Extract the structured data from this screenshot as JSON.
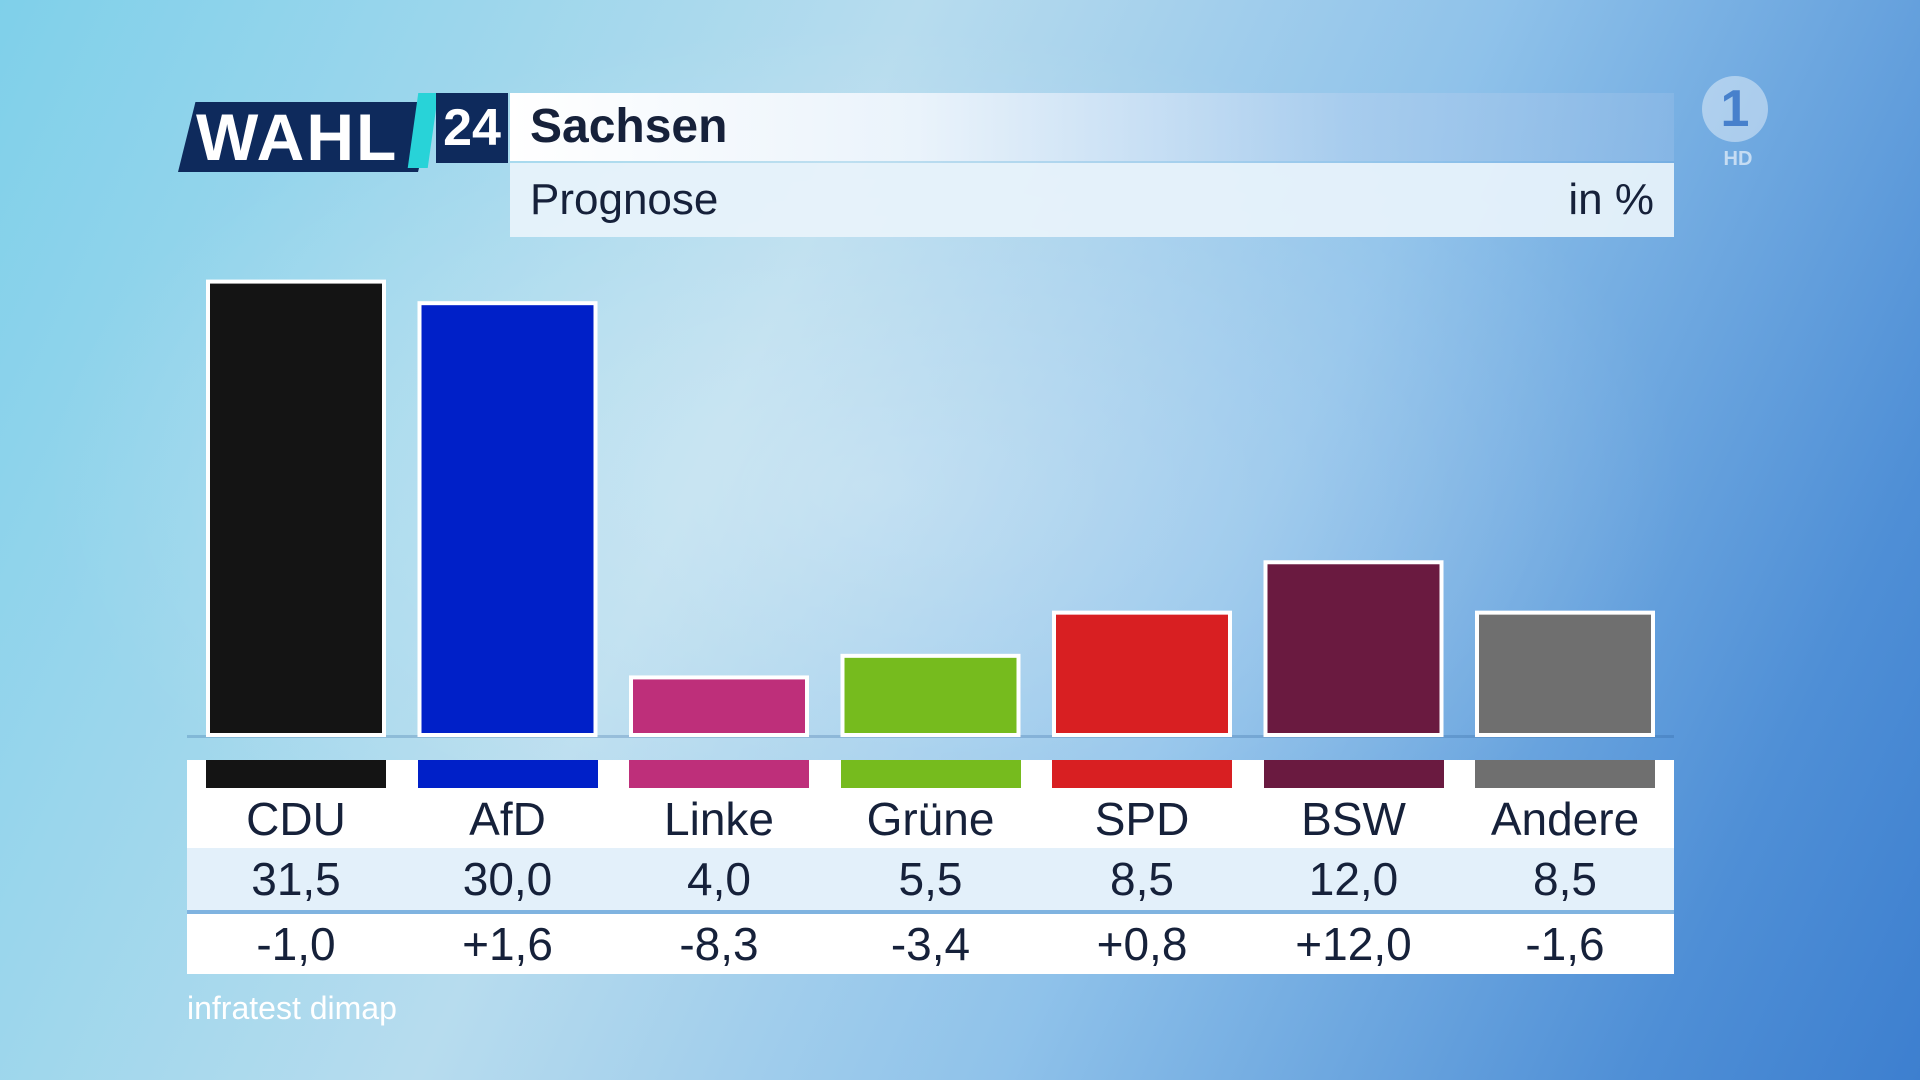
{
  "header": {
    "logo_text": "WAHL",
    "logo_number": "24",
    "title": "Sachsen",
    "subtitle": "Prognose",
    "unit": "in %"
  },
  "channel": {
    "logo": "1",
    "quality": "HD"
  },
  "colors": {
    "header_navy": "#0e2a5c",
    "accent_cyan": "#28d3d8",
    "background_light": "#b7dcee",
    "background_dark": "#3d7fcf"
  },
  "chart_data": {
    "type": "bar",
    "categories": [
      "CDU",
      "AfD",
      "Linke",
      "Grüne",
      "SPD",
      "BSW",
      "Andere"
    ],
    "values": [
      31.5,
      30.0,
      4.0,
      5.5,
      8.5,
      12.0,
      8.5
    ],
    "value_labels": [
      "31,5",
      "30,0",
      "4,0",
      "5,5",
      "8,5",
      "12,0",
      "8,5"
    ],
    "changes": [
      -1.0,
      1.6,
      -8.3,
      -3.4,
      0.8,
      12.0,
      -1.6
    ],
    "change_labels": [
      "-1,0",
      "+1,6",
      "-8,3",
      "-3,4",
      "+0,8",
      "+12,0",
      "-1,6"
    ],
    "bar_colors": [
      "#141414",
      "#0020c8",
      "#be2f7a",
      "#76bb1e",
      "#d81f22",
      "#6a1a40",
      "#6f6f6f"
    ],
    "title": "Sachsen",
    "subtitle": "Prognose",
    "ylabel": "",
    "ylim": [
      0,
      33
    ],
    "grid": false,
    "legend": "none"
  },
  "source": "infratest dimap"
}
